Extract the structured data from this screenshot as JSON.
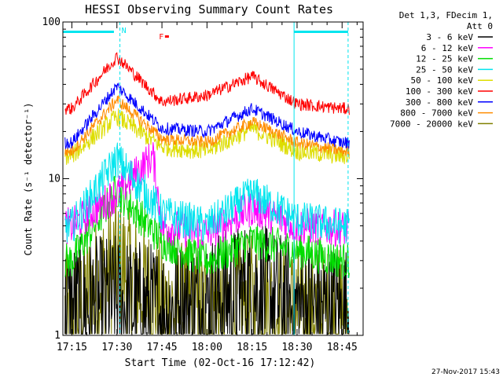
{
  "chart_data": {
    "type": "line",
    "title": "HESSI Observing Summary Count Rates",
    "xlabel": "Start Time (02-Oct-16 17:12:42)",
    "ylabel": "Count Rate (s⁻¹ detector⁻¹)",
    "xlim": [
      "17:12",
      "18:52"
    ],
    "ylim": [
      1,
      100
    ],
    "yscale": "log",
    "x_ticks": [
      "17:15",
      "17:30",
      "17:45",
      "18:00",
      "18:15",
      "18:30",
      "18:45"
    ],
    "y_ticks": [
      "1",
      "10",
      "100"
    ],
    "grid": false,
    "legend": {
      "placement": "right",
      "header_line1": "Det 1,3, FDecim 1,",
      "header_line2": "Att 0"
    },
    "series": [
      {
        "name": "3 - 6 keV",
        "color": "#000000",
        "x": [
          "17:15",
          "17:30",
          "17:45",
          "18:00",
          "18:15",
          "18:30",
          "18:45"
        ],
        "values": [
          1.5,
          1.6,
          1.4,
          1.6,
          2.0,
          1.5,
          1.4
        ]
      },
      {
        "name": "6 - 12 keV",
        "color": "#ff00ff",
        "x": [
          "17:15",
          "17:30",
          "17:42",
          "17:45",
          "18:00",
          "18:15",
          "18:30",
          "18:45"
        ],
        "values": [
          5.0,
          8.0,
          14.0,
          5.0,
          4.5,
          6.5,
          5.0,
          4.8
        ]
      },
      {
        "name": "12 - 25 keV",
        "color": "#00dd00",
        "x": [
          "17:15",
          "17:30",
          "17:45",
          "18:00",
          "18:15",
          "18:30",
          "18:45"
        ],
        "values": [
          3.0,
          8.5,
          4.0,
          3.0,
          4.0,
          3.5,
          3.0
        ]
      },
      {
        "name": "25 - 50 keV",
        "color": "#00e5ee",
        "x": [
          "17:15",
          "17:30",
          "17:45",
          "18:00",
          "18:15",
          "18:30",
          "18:45"
        ],
        "values": [
          5.0,
          13.5,
          6.0,
          5.0,
          8.0,
          5.5,
          5.0
        ]
      },
      {
        "name": "50 - 100 keV",
        "color": "#dddd00",
        "x": [
          "17:15",
          "17:30",
          "17:45",
          "18:00",
          "18:15",
          "18:30",
          "18:45"
        ],
        "values": [
          14.0,
          25.0,
          16.0,
          15.0,
          21.0,
          15.0,
          14.0
        ]
      },
      {
        "name": "100 - 300 keV",
        "color": "#ff0000",
        "x": [
          "17:15",
          "17:30",
          "17:45",
          "18:00",
          "18:15",
          "18:30",
          "18:45"
        ],
        "values": [
          28.0,
          60.0,
          31.0,
          34.0,
          45.0,
          30.0,
          28.0
        ]
      },
      {
        "name": "300 - 800 keV",
        "color": "#0000ff",
        "x": [
          "17:15",
          "17:30",
          "17:45",
          "18:00",
          "18:15",
          "18:30",
          "18:45"
        ],
        "values": [
          17.0,
          39.0,
          21.0,
          20.0,
          28.0,
          20.0,
          17.0
        ]
      },
      {
        "name": "800 - 7000 keV",
        "color": "#ff8c00",
        "x": [
          "17:15",
          "17:30",
          "17:45",
          "18:00",
          "18:15",
          "18:30",
          "18:45"
        ],
        "values": [
          15.0,
          32.0,
          18.0,
          17.0,
          23.0,
          17.0,
          15.0
        ]
      },
      {
        "name": "7000 - 20000 keV",
        "color": "#808000",
        "x": [
          "17:15",
          "17:30",
          "17:45",
          "18:00",
          "18:15",
          "18:30",
          "18:45"
        ],
        "values": [
          1.3,
          3.0,
          1.5,
          1.4,
          1.6,
          1.4,
          1.3
        ]
      }
    ],
    "annotations": [
      {
        "label": "N",
        "color": "#00e5ee",
        "x": "17:31",
        "marks": [
          "17:12-17:30",
          "18:29-18:47"
        ]
      },
      {
        "label": "F",
        "color": "#ff0000",
        "x": "17:44"
      }
    ]
  },
  "footer_date": "27-Nov-2017 15:43"
}
